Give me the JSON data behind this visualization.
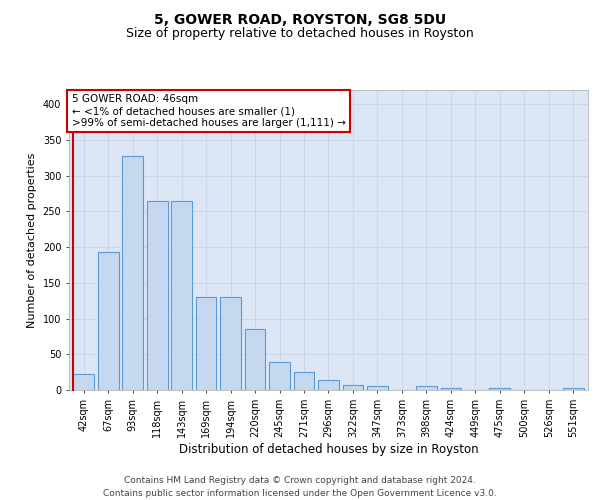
{
  "title": "5, GOWER ROAD, ROYSTON, SG8 5DU",
  "subtitle": "Size of property relative to detached houses in Royston",
  "xlabel": "Distribution of detached houses by size in Royston",
  "ylabel": "Number of detached properties",
  "categories": [
    "42sqm",
    "67sqm",
    "93sqm",
    "118sqm",
    "143sqm",
    "169sqm",
    "194sqm",
    "220sqm",
    "245sqm",
    "271sqm",
    "296sqm",
    "322sqm",
    "347sqm",
    "373sqm",
    "398sqm",
    "424sqm",
    "449sqm",
    "475sqm",
    "500sqm",
    "526sqm",
    "551sqm"
  ],
  "values": [
    23,
    193,
    327,
    265,
    265,
    130,
    130,
    86,
    39,
    25,
    14,
    7,
    5,
    0,
    5,
    3,
    0,
    3,
    0,
    0,
    3
  ],
  "bar_color": "#c5d8f0",
  "bar_edge_color": "#5b9bd5",
  "highlight_color": "#cc0000",
  "annotation_text": "5 GOWER ROAD: 46sqm\n← <1% of detached houses are smaller (1)\n>99% of semi-detached houses are larger (1,111) →",
  "annotation_box_facecolor": "#ffffff",
  "annotation_box_edgecolor": "#cc0000",
  "ylim": [
    0,
    420
  ],
  "yticks": [
    0,
    50,
    100,
    150,
    200,
    250,
    300,
    350,
    400
  ],
  "grid_color": "#c8d4e8",
  "axes_facecolor": "#dce6f5",
  "footer_line1": "Contains HM Land Registry data © Crown copyright and database right 2024.",
  "footer_line2": "Contains public sector information licensed under the Open Government Licence v3.0.",
  "title_fontsize": 10,
  "subtitle_fontsize": 9,
  "xlabel_fontsize": 8.5,
  "ylabel_fontsize": 8,
  "tick_fontsize": 7,
  "footer_fontsize": 6.5,
  "annotation_fontsize": 7.5
}
